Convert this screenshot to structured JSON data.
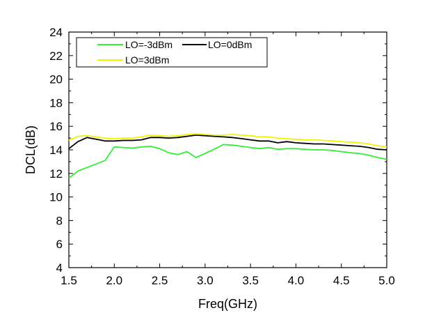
{
  "chart_data": {
    "type": "line",
    "title": "",
    "xlabel": "Freq(GHz)",
    "ylabel": "DCL(dB)",
    "xlim": [
      1.5,
      5.0
    ],
    "ylim": [
      4,
      24
    ],
    "xticks": [
      1.5,
      2.0,
      2.5,
      3.0,
      3.5,
      4.0,
      4.5,
      5.0
    ],
    "xtick_labels": [
      "1.5",
      "2.0",
      "2.5",
      "3.0",
      "3.5",
      "4.0",
      "4.5",
      "5.0"
    ],
    "yticks": [
      4,
      6,
      8,
      10,
      12,
      14,
      16,
      18,
      20,
      22,
      24
    ],
    "ytick_labels": [
      "4",
      "6",
      "8",
      "10",
      "12",
      "14",
      "16",
      "18",
      "20",
      "22",
      "24"
    ],
    "grid": false,
    "legend_position": "top-left",
    "series": [
      {
        "name": "LO=-3dBm",
        "color": "#33ee33",
        "x": [
          1.5,
          1.6,
          1.7,
          1.8,
          1.9,
          2.0,
          2.1,
          2.2,
          2.3,
          2.4,
          2.5,
          2.6,
          2.7,
          2.8,
          2.9,
          3.0,
          3.1,
          3.2,
          3.3,
          3.4,
          3.5,
          3.6,
          3.7,
          3.8,
          3.9,
          4.0,
          4.1,
          4.2,
          4.3,
          4.4,
          4.5,
          4.6,
          4.7,
          4.8,
          4.9,
          5.0
        ],
        "y": [
          11.6,
          12.2,
          12.5,
          12.8,
          13.1,
          14.25,
          14.2,
          14.15,
          14.25,
          14.3,
          14.1,
          13.75,
          13.6,
          13.85,
          13.35,
          13.7,
          14.05,
          14.45,
          14.4,
          14.3,
          14.2,
          14.1,
          14.2,
          14.05,
          14.1,
          14.1,
          14.05,
          14.0,
          14.0,
          13.95,
          13.85,
          13.75,
          13.7,
          13.55,
          13.35,
          13.2
        ]
      },
      {
        "name": "LO=0dBm",
        "color": "#000000",
        "x": [
          1.5,
          1.6,
          1.7,
          1.8,
          1.9,
          2.0,
          2.1,
          2.2,
          2.3,
          2.4,
          2.5,
          2.6,
          2.7,
          2.8,
          2.9,
          3.0,
          3.1,
          3.2,
          3.3,
          3.4,
          3.5,
          3.6,
          3.7,
          3.8,
          3.9,
          4.0,
          4.1,
          4.2,
          4.3,
          4.4,
          4.5,
          4.6,
          4.7,
          4.8,
          4.9,
          5.0
        ],
        "y": [
          14.1,
          14.7,
          15.05,
          14.9,
          14.75,
          14.75,
          14.8,
          14.8,
          14.85,
          15.05,
          15.05,
          15.0,
          15.05,
          15.15,
          15.25,
          15.2,
          15.15,
          15.1,
          15.05,
          14.95,
          14.85,
          14.75,
          14.75,
          14.6,
          14.7,
          14.6,
          14.55,
          14.5,
          14.5,
          14.45,
          14.4,
          14.35,
          14.3,
          14.2,
          14.05,
          14.0
        ]
      },
      {
        "name": "LO=3dBm",
        "color": "#f2f200",
        "x": [
          1.5,
          1.6,
          1.7,
          1.8,
          1.9,
          2.0,
          2.1,
          2.2,
          2.3,
          2.4,
          2.5,
          2.6,
          2.7,
          2.8,
          2.9,
          3.0,
          3.1,
          3.2,
          3.3,
          3.4,
          3.5,
          3.6,
          3.7,
          3.8,
          3.9,
          4.0,
          4.1,
          4.2,
          4.3,
          4.4,
          4.5,
          4.6,
          4.7,
          4.8,
          4.9,
          5.0
        ],
        "y": [
          14.8,
          15.15,
          15.2,
          15.1,
          15.0,
          14.95,
          15.0,
          15.0,
          15.1,
          15.25,
          15.2,
          15.15,
          15.2,
          15.3,
          15.35,
          15.3,
          15.25,
          15.25,
          15.3,
          15.25,
          15.2,
          15.1,
          15.1,
          15.0,
          14.95,
          14.9,
          14.85,
          14.85,
          14.8,
          14.75,
          14.7,
          14.65,
          14.6,
          14.5,
          14.35,
          14.25
        ]
      }
    ]
  }
}
